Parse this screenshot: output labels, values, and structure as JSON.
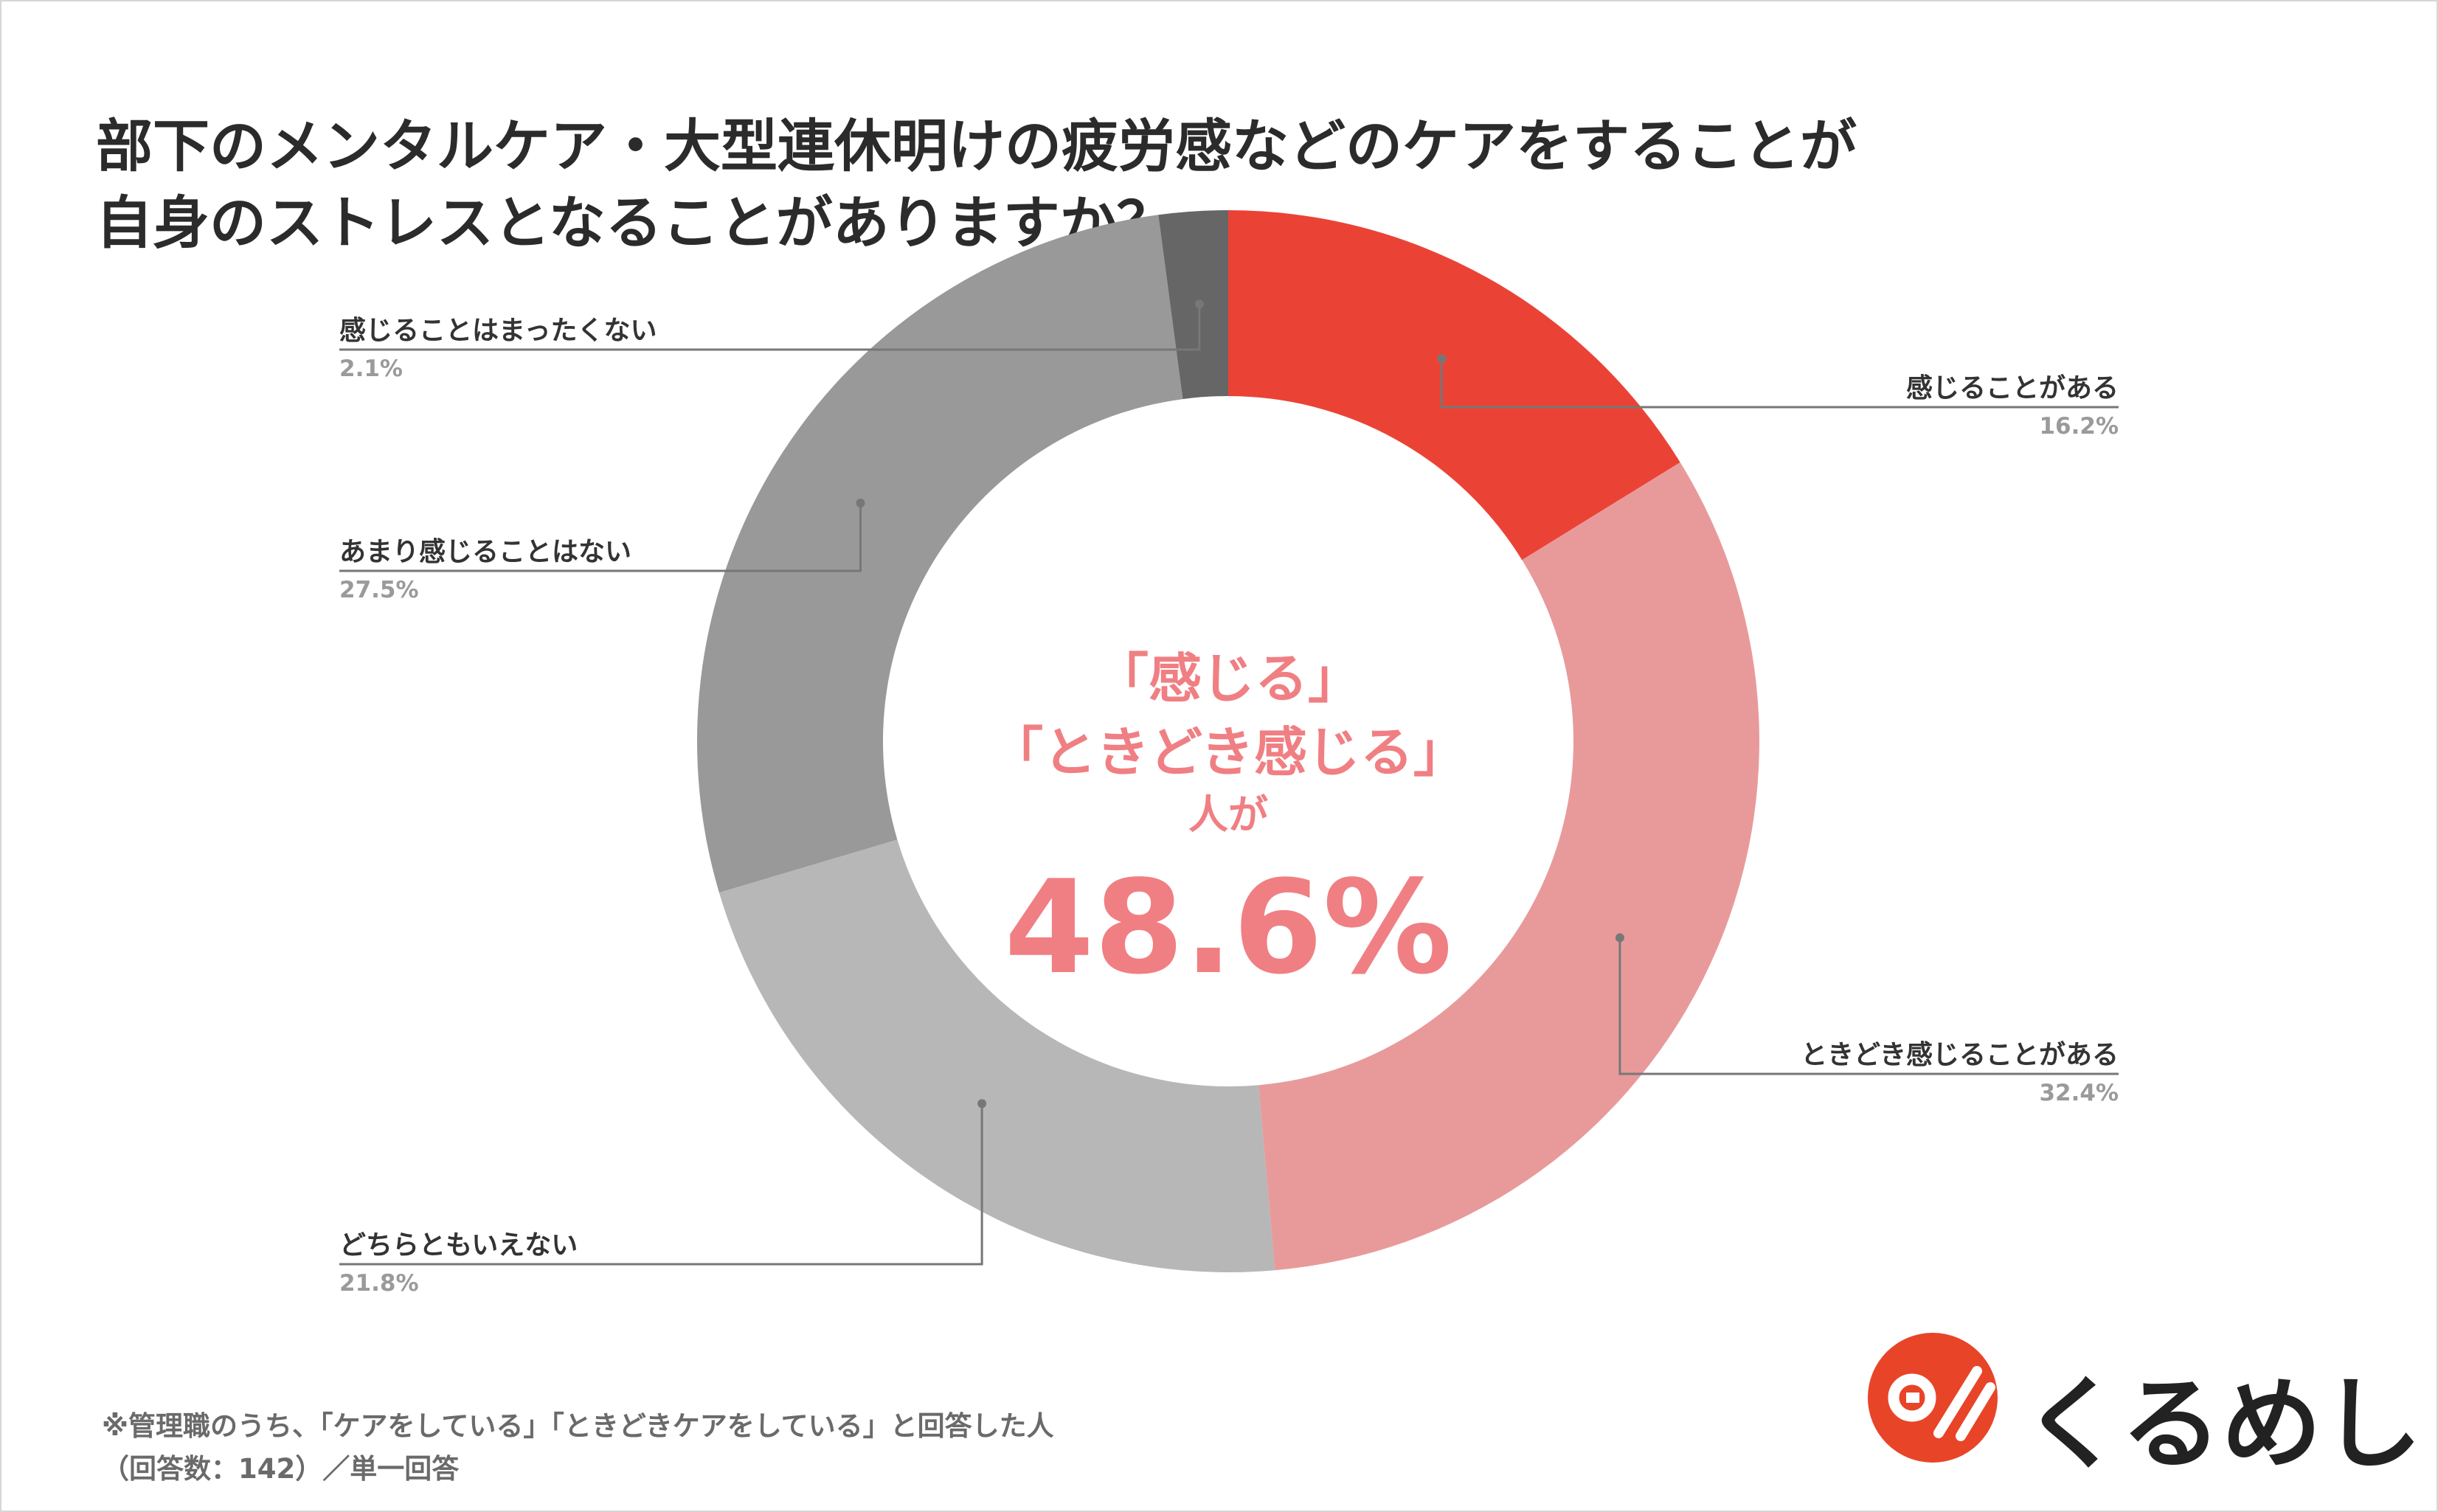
{
  "title": {
    "line1": "部下のメンタルケア・大型連休明けの疲労感などのケアをすることが",
    "line2": "自身のストレスとなることがありますか？"
  },
  "chart_data": {
    "type": "pie",
    "donut": true,
    "start_angle": "top, clockwise",
    "slices": [
      {
        "label": "感じることがある",
        "value": 16.2,
        "display": "16.2%",
        "color": "#ea4336"
      },
      {
        "label": "ときどき感じることがある",
        "value": 32.4,
        "display": "32.4%",
        "color": "#e89a9b"
      },
      {
        "label": "どちらともいえない",
        "value": 21.8,
        "display": "21.8%",
        "color": "#b7b7b7"
      },
      {
        "label": "あまり感じることはない",
        "value": 27.5,
        "display": "27.5%",
        "color": "#999999"
      },
      {
        "label": "感じることはまったくない",
        "value": 2.1,
        "display": "2.1%",
        "color": "#666666"
      }
    ]
  },
  "center": {
    "line1": "「感じる」",
    "line2": "「ときどき感じる」",
    "line3": "人が",
    "value": "48.6%"
  },
  "footnote": {
    "line1": "※管理職のうち、「ケアをしている」「ときどきケアをしている」と回答した人",
    "line2": "（回答数：142）／単一回答"
  },
  "brand": {
    "name": "くるめし",
    "color": "#e84428",
    "icon": "kurumeshi-logo-icon"
  }
}
